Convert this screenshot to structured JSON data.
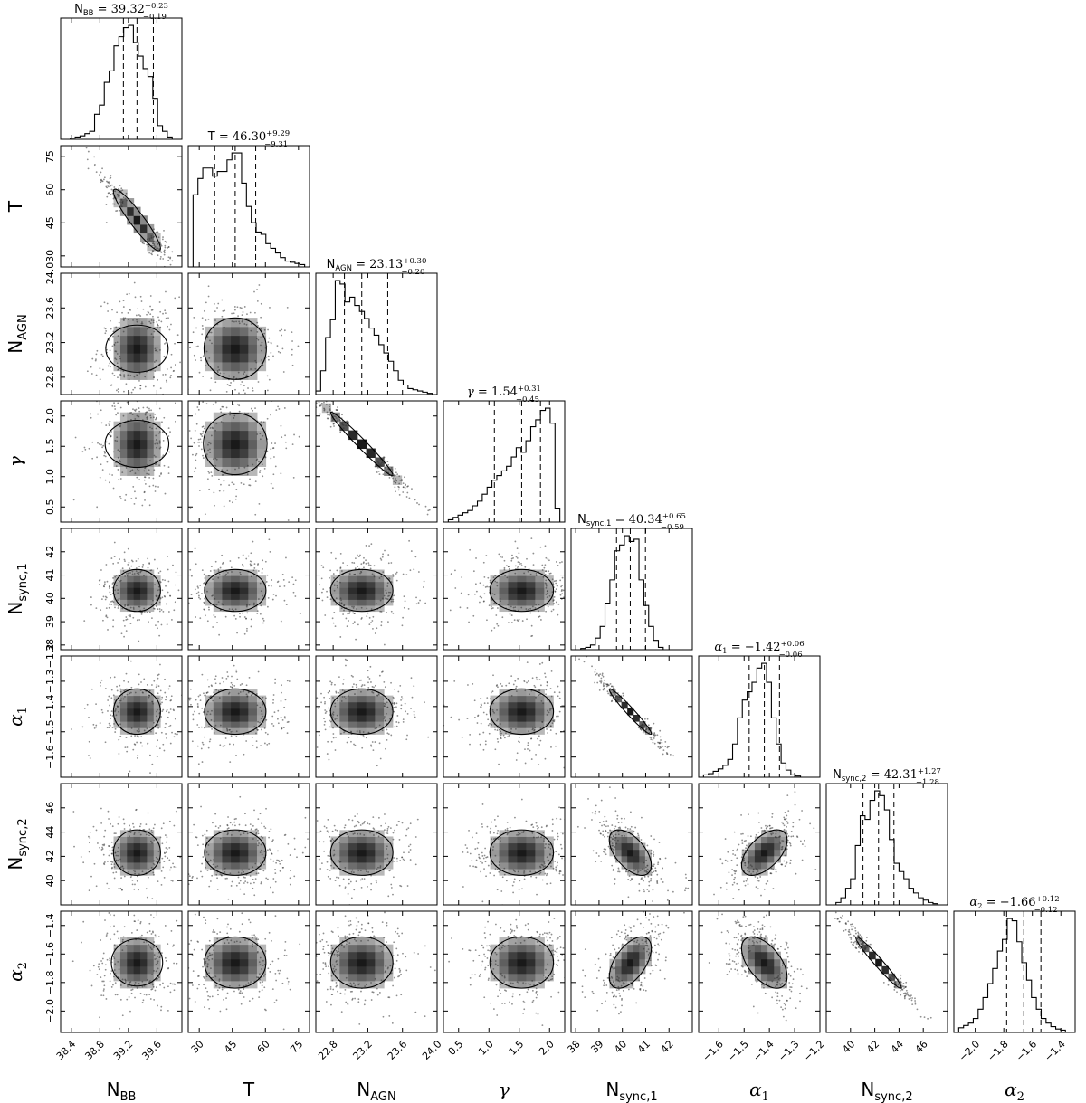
{
  "chart_data": {
    "type": "corner",
    "parameters": [
      {
        "key": "NBB",
        "label": "N",
        "sub": "BB",
        "italic": false,
        "ylabel_font": "sans",
        "range": [
          38.25,
          39.95
        ],
        "ticks": [
          38.4,
          38.8,
          39.2,
          39.6
        ],
        "tick_labels": [
          "38.4",
          "38.8",
          "39.2",
          "39.6"
        ],
        "title_lhs": "N",
        "title_sub": "BB",
        "title_value": "39.32",
        "title_plus": "+0.23",
        "title_minus": "−0.19",
        "median": 39.32,
        "q16": 39.13,
        "q84": 39.55,
        "sd": 0.22,
        "hist": [
          0,
          0,
          0.01,
          0.02,
          0.03,
          0.05,
          0.07,
          0.22,
          0.3,
          0.5,
          0.6,
          0.82,
          0.9,
          0.98,
          1.0,
          0.85,
          0.73,
          0.62,
          0.55,
          0.36,
          0.12,
          0.07,
          0.02,
          0,
          0
        ]
      },
      {
        "key": "T",
        "label": "T",
        "sub": "",
        "italic": false,
        "ylabel_font": "sans",
        "range": [
          25,
          80
        ],
        "ticks": [
          30,
          45,
          60,
          75
        ],
        "tick_labels": [
          "30",
          "45",
          "60",
          "75"
        ],
        "title_lhs": "T",
        "title_sub": "",
        "title_value": "46.30",
        "title_plus": "+9.29",
        "title_minus": "−9.31",
        "median": 46.3,
        "q16": 37.0,
        "q84": 55.6,
        "sd": 9.3,
        "hist": [
          0,
          0.62,
          0.76,
          0.85,
          0.85,
          0.78,
          0.82,
          0.82,
          0.92,
          0.98,
          0.98,
          0.72,
          0.52,
          0.38,
          0.3,
          0.28,
          0.2,
          0.16,
          0.12,
          0.08,
          0.05,
          0.04,
          0.03,
          0.02,
          0
        ]
      },
      {
        "key": "NAGN",
        "label": "N",
        "sub": "AGN",
        "italic": false,
        "ylabel_font": "sans",
        "range": [
          22.6,
          24.0
        ],
        "ticks": [
          22.8,
          23.2,
          23.6,
          24.0
        ],
        "tick_labels": [
          "22.8",
          "23.2",
          "23.6",
          "24.0"
        ],
        "title_lhs": "N",
        "title_sub": "AGN",
        "title_value": "23.13",
        "title_plus": "+0.30",
        "title_minus": "−0.20",
        "median": 23.13,
        "q16": 22.93,
        "q84": 23.43,
        "sd": 0.24,
        "hist": [
          0.03,
          0.2,
          0.48,
          0.63,
          0.96,
          0.93,
          0.78,
          0.82,
          0.75,
          0.7,
          0.64,
          0.56,
          0.5,
          0.42,
          0.35,
          0.28,
          0.2,
          0.12,
          0.08,
          0.05,
          0.04,
          0.03,
          0.02,
          0.01,
          0
        ]
      },
      {
        "key": "gamma",
        "label": "γ",
        "sub": "",
        "italic": true,
        "ylabel_font": "serif",
        "range": [
          0.25,
          2.25
        ],
        "ticks": [
          0.5,
          1.0,
          1.5,
          2.0
        ],
        "tick_labels": [
          "0.5",
          "1.0",
          "1.5",
          "2.0"
        ],
        "title_lhs": "γ",
        "title_sub": "",
        "title_value": "1.54",
        "title_plus": "+0.31",
        "title_minus": "−0.45",
        "median": 1.54,
        "q16": 1.09,
        "q84": 1.85,
        "sd": 0.35,
        "hist": [
          0,
          0.02,
          0.04,
          0.06,
          0.08,
          0.1,
          0.14,
          0.18,
          0.24,
          0.3,
          0.36,
          0.4,
          0.44,
          0.48,
          0.56,
          0.64,
          0.6,
          0.7,
          0.82,
          0.88,
          0.96,
          0.98,
          0.85,
          0.12,
          0
        ]
      },
      {
        "key": "Nsync1",
        "label": "N",
        "sub": "sync,1",
        "italic": false,
        "ylabel_font": "sans",
        "range": [
          37.8,
          43.0
        ],
        "ticks": [
          38,
          39,
          40,
          41,
          42
        ],
        "tick_labels": [
          "38",
          "39",
          "40",
          "41",
          "42"
        ],
        "title_lhs": "N",
        "title_sub": "sync,1",
        "title_value": "40.34",
        "title_plus": "+0.65",
        "title_minus": "−0.59",
        "median": 40.34,
        "q16": 39.75,
        "q84": 40.99,
        "sd": 0.6,
        "hist": [
          0,
          0,
          0.01,
          0.02,
          0.04,
          0.1,
          0.2,
          0.4,
          0.6,
          0.85,
          0.9,
          0.98,
          0.93,
          0.95,
          0.6,
          0.38,
          0.2,
          0.08,
          0.02,
          0,
          0,
          0,
          0,
          0,
          0
        ]
      },
      {
        "key": "alpha1",
        "label": "α",
        "sub": "1",
        "italic": true,
        "ylabel_font": "serif",
        "range": [
          -1.68,
          -1.2
        ],
        "ticks": [
          -1.6,
          -1.5,
          -1.4,
          -1.3,
          -1.2
        ],
        "tick_labels": [
          "−1.6",
          "−1.5",
          "−1.4",
          "−1.3",
          "−1.2"
        ],
        "title_lhs": "α",
        "title_sub": "1",
        "title_value": "−1.42",
        "title_plus": "+0.06",
        "title_minus": "−0.06",
        "median": -1.42,
        "q16": -1.48,
        "q84": -1.36,
        "sd": 0.06,
        "hist": [
          0,
          0.02,
          0.03,
          0.05,
          0.07,
          0.1,
          0.15,
          0.28,
          0.5,
          0.65,
          0.72,
          0.8,
          0.92,
          0.96,
          0.8,
          0.5,
          0.28,
          0.12,
          0.06,
          0.02,
          0.01,
          0,
          0,
          0,
          0
        ]
      },
      {
        "key": "Nsync2",
        "label": "N",
        "sub": "sync,2",
        "italic": false,
        "ylabel_font": "sans",
        "range": [
          38.0,
          48.0
        ],
        "ticks": [
          40,
          42,
          44,
          46
        ],
        "tick_labels": [
          "40",
          "42",
          "44",
          "46"
        ],
        "title_lhs": "N",
        "title_sub": "sync,2",
        "title_value": "42.31",
        "title_plus": "+1.27",
        "title_minus": "−1.28",
        "median": 42.31,
        "q16": 41.03,
        "q84": 43.58,
        "sd": 1.25,
        "hist": [
          0,
          0,
          0.02,
          0.06,
          0.14,
          0.22,
          0.5,
          0.75,
          0.72,
          0.88,
          0.96,
          0.92,
          0.8,
          0.55,
          0.35,
          0.28,
          0.22,
          0.14,
          0.1,
          0.06,
          0.04,
          0.02,
          0.01,
          0,
          0
        ]
      },
      {
        "key": "alpha2",
        "label": "α",
        "sub": "2",
        "italic": true,
        "ylabel_font": "serif",
        "range": [
          -2.15,
          -1.3
        ],
        "ticks": [
          -2.0,
          -1.8,
          -1.6,
          -1.4
        ],
        "tick_labels": [
          "−2.0",
          "−1.8",
          "−1.6",
          "−1.4"
        ],
        "title_lhs": "α",
        "title_sub": "2",
        "title_value": "−1.66",
        "title_plus": "+0.12",
        "title_minus": "−0.12",
        "median": -1.66,
        "q16": -1.78,
        "q84": -1.54,
        "sd": 0.12,
        "hist": [
          0,
          0.04,
          0.06,
          0.08,
          0.12,
          0.2,
          0.3,
          0.42,
          0.55,
          0.7,
          0.8,
          0.98,
          0.96,
          0.78,
          0.6,
          0.45,
          0.3,
          0.2,
          0.12,
          0.08,
          0.05,
          0.03,
          0.02,
          0,
          0
        ]
      }
    ],
    "correlations": {
      "1,0": -0.93,
      "2,0": 0.0,
      "2,1": 0.0,
      "3,0": 0.0,
      "3,1": 0.0,
      "3,2": -0.98,
      "4,0": 0.0,
      "4,1": 0.0,
      "4,2": 0.0,
      "4,3": 0.0,
      "5,0": 0.0,
      "5,1": 0.0,
      "5,2": 0.0,
      "5,3": 0.0,
      "5,4": -0.97,
      "6,0": 0.0,
      "6,1": 0.0,
      "6,2": 0.0,
      "6,3": 0.0,
      "6,4": -0.55,
      "6,5": 0.55,
      "7,0": 0.0,
      "7,1": 0.0,
      "7,2": 0.0,
      "7,3": 0.0,
      "7,4": 0.55,
      "7,5": -0.55,
      "7,6": -0.97
    },
    "quantile_lines": "16th, 50th, 84th percentiles (dashed)",
    "grid": false
  }
}
